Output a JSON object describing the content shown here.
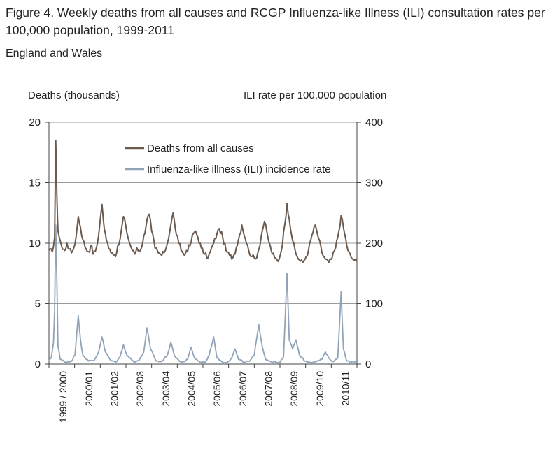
{
  "title": "Figure 4. Weekly deaths from all causes and RCGP Influenza-like Illness (ILI) consultation rates per 100,000 population, 1999-2011",
  "subtitle": "England and Wales",
  "chart_data": {
    "type": "line",
    "title": "Weekly deaths from all causes and RCGP Influenza-like Illness (ILI) consultation rates per 100,000 population, 1999-2011",
    "subtitle": "England and Wales",
    "ylabel_left": "Deaths (thousands)",
    "ylabel_right": "ILI rate per 100,000  population",
    "ylim_left": [
      0,
      20
    ],
    "ylim_right": [
      0,
      400
    ],
    "yticks_left": [
      0,
      5,
      10,
      15,
      20
    ],
    "yticks_right": [
      0,
      100,
      200,
      300,
      400
    ],
    "grid": true,
    "legend_position": "top-center",
    "x_tick_labels": [
      "1999 / 2000",
      "2000/01",
      "2001/02",
      "2002/03",
      "2003/04",
      "2004/05",
      "2005/06",
      "2006/07",
      "2007/08",
      "2008/09",
      "2009/10",
      "2010/11"
    ],
    "series": [
      {
        "name": "Deaths from all causes",
        "axis": "left",
        "color": "#6b5a4e",
        "anchors": [
          [
            0,
            9.4
          ],
          [
            0.3,
            9.3
          ],
          [
            0.5,
            10.5
          ],
          [
            0.6,
            18.5
          ],
          [
            0.7,
            14
          ],
          [
            0.8,
            11
          ],
          [
            1.0,
            10.2
          ],
          [
            1.2,
            9.5
          ],
          [
            1.4,
            9.4
          ],
          [
            1.6,
            10
          ],
          [
            1.8,
            9.5
          ],
          [
            2.0,
            9.2
          ],
          [
            2.2,
            9.6
          ],
          [
            2.4,
            10.5
          ],
          [
            2.6,
            12.2
          ],
          [
            2.8,
            11.3
          ],
          [
            3.0,
            10.3
          ],
          [
            3.3,
            9.5
          ],
          [
            3.5,
            9.3
          ],
          [
            3.8,
            9.8
          ],
          [
            3.9,
            9.1
          ],
          [
            4.1,
            9.3
          ],
          [
            4.3,
            10
          ],
          [
            4.5,
            11.5
          ],
          [
            4.7,
            13.2
          ],
          [
            4.9,
            11.2
          ],
          [
            5.1,
            10.2
          ],
          [
            5.4,
            9.5
          ],
          [
            5.6,
            9.2
          ],
          [
            5.8,
            9
          ],
          [
            6.0,
            9.2
          ],
          [
            6.3,
            10.3
          ],
          [
            6.6,
            12.2
          ],
          [
            6.8,
            11.5
          ],
          [
            7.0,
            10.5
          ],
          [
            7.3,
            9.6
          ],
          [
            7.6,
            9.1
          ],
          [
            7.8,
            9.6
          ],
          [
            8.0,
            9.3
          ],
          [
            8.3,
            10
          ],
          [
            8.7,
            12
          ],
          [
            8.9,
            12.4
          ],
          [
            9.1,
            11
          ],
          [
            9.4,
            9.6
          ],
          [
            9.7,
            9.2
          ],
          [
            10.0,
            9
          ],
          [
            10.2,
            9.2
          ],
          [
            10.5,
            10
          ],
          [
            10.8,
            11.5
          ],
          [
            11.0,
            12.5
          ],
          [
            11.2,
            11.2
          ],
          [
            11.5,
            10
          ],
          [
            11.8,
            9.3
          ],
          [
            12.0,
            9
          ],
          [
            12.2,
            9.4
          ],
          [
            12.5,
            9.8
          ],
          [
            12.8,
            10.8
          ],
          [
            13.0,
            11
          ],
          [
            13.2,
            10.5
          ],
          [
            13.5,
            9.6
          ],
          [
            13.8,
            9.1
          ],
          [
            14.1,
            8.8
          ],
          [
            14.3,
            9.3
          ],
          [
            14.6,
            10
          ],
          [
            14.9,
            10.8
          ],
          [
            15.1,
            11.2
          ],
          [
            15.4,
            10.5
          ],
          [
            15.7,
            9.4
          ],
          [
            16.0,
            9
          ],
          [
            16.3,
            8.8
          ],
          [
            16.6,
            9.6
          ],
          [
            16.9,
            10.7
          ],
          [
            17.1,
            11.5
          ],
          [
            17.4,
            10.4
          ],
          [
            17.7,
            9.4
          ],
          [
            18.0,
            8.9
          ],
          [
            18.3,
            8.7
          ],
          [
            18.6,
            9.5
          ],
          [
            18.9,
            11
          ],
          [
            19.1,
            11.8
          ],
          [
            19.4,
            10.5
          ],
          [
            19.7,
            9.4
          ],
          [
            20.0,
            8.8
          ],
          [
            20.3,
            8.5
          ],
          [
            20.6,
            9.4
          ],
          [
            20.9,
            11.5
          ],
          [
            21.1,
            13.3
          ],
          [
            21.3,
            12
          ],
          [
            21.6,
            10.2
          ],
          [
            21.9,
            9.1
          ],
          [
            22.2,
            8.6
          ],
          [
            22.5,
            8.4
          ],
          [
            22.8,
            8.9
          ],
          [
            23.0,
            9.4
          ],
          [
            23.3,
            10.6
          ],
          [
            23.6,
            11.5
          ],
          [
            23.9,
            10.4
          ],
          [
            24.2,
            9.2
          ],
          [
            24.5,
            8.7
          ],
          [
            24.8,
            8.4
          ],
          [
            25.1,
            8.8
          ],
          [
            25.4,
            9.6
          ],
          [
            25.7,
            11
          ],
          [
            25.9,
            12.3
          ],
          [
            26.2,
            10.8
          ],
          [
            26.5,
            9.4
          ],
          [
            26.8,
            8.8
          ],
          [
            27.1,
            8.6
          ],
          [
            27.3,
            8.5
          ]
        ]
      },
      {
        "name": "Influenza-like illness (ILI) incidence rate",
        "axis": "right",
        "color": "#8fa3b9",
        "anchors": [
          [
            0,
            5
          ],
          [
            0.2,
            10
          ],
          [
            0.4,
            35
          ],
          [
            0.5,
            90
          ],
          [
            0.6,
            230
          ],
          [
            0.7,
            140
          ],
          [
            0.8,
            30
          ],
          [
            1.0,
            8
          ],
          [
            1.5,
            3
          ],
          [
            2.0,
            5
          ],
          [
            2.3,
            15
          ],
          [
            2.6,
            80
          ],
          [
            2.8,
            40
          ],
          [
            3.0,
            15
          ],
          [
            3.5,
            5
          ],
          [
            4.0,
            6
          ],
          [
            4.4,
            20
          ],
          [
            4.7,
            45
          ],
          [
            5.0,
            20
          ],
          [
            5.5,
            5
          ],
          [
            6.0,
            4
          ],
          [
            6.3,
            12
          ],
          [
            6.6,
            32
          ],
          [
            6.9,
            15
          ],
          [
            7.5,
            4
          ],
          [
            8.0,
            6
          ],
          [
            8.4,
            20
          ],
          [
            8.7,
            60
          ],
          [
            9.0,
            25
          ],
          [
            9.5,
            5
          ],
          [
            10.0,
            4
          ],
          [
            10.5,
            15
          ],
          [
            10.8,
            36
          ],
          [
            11.1,
            15
          ],
          [
            11.6,
            4
          ],
          [
            12.0,
            4
          ],
          [
            12.3,
            8
          ],
          [
            12.6,
            28
          ],
          [
            12.9,
            10
          ],
          [
            13.4,
            3
          ],
          [
            13.9,
            4
          ],
          [
            14.2,
            15
          ],
          [
            14.6,
            45
          ],
          [
            14.9,
            10
          ],
          [
            15.4,
            3
          ],
          [
            15.8,
            3
          ],
          [
            16.2,
            10
          ],
          [
            16.5,
            25
          ],
          [
            16.8,
            8
          ],
          [
            17.3,
            3
          ],
          [
            17.8,
            5
          ],
          [
            18.2,
            15
          ],
          [
            18.6,
            65
          ],
          [
            18.9,
            30
          ],
          [
            19.2,
            8
          ],
          [
            19.7,
            4
          ],
          [
            20.1,
            3
          ],
          [
            20.5,
            3
          ],
          [
            20.8,
            12
          ],
          [
            21.1,
            150
          ],
          [
            21.3,
            40
          ],
          [
            21.6,
            25
          ],
          [
            21.9,
            40
          ],
          [
            22.2,
            15
          ],
          [
            22.7,
            5
          ],
          [
            23.2,
            3
          ],
          [
            23.7,
            4
          ],
          [
            24.2,
            8
          ],
          [
            24.5,
            20
          ],
          [
            24.8,
            10
          ],
          [
            25.2,
            4
          ],
          [
            25.6,
            10
          ],
          [
            25.9,
            120
          ],
          [
            26.1,
            25
          ],
          [
            26.4,
            5
          ],
          [
            26.8,
            3
          ],
          [
            27.3,
            5
          ]
        ]
      }
    ]
  }
}
